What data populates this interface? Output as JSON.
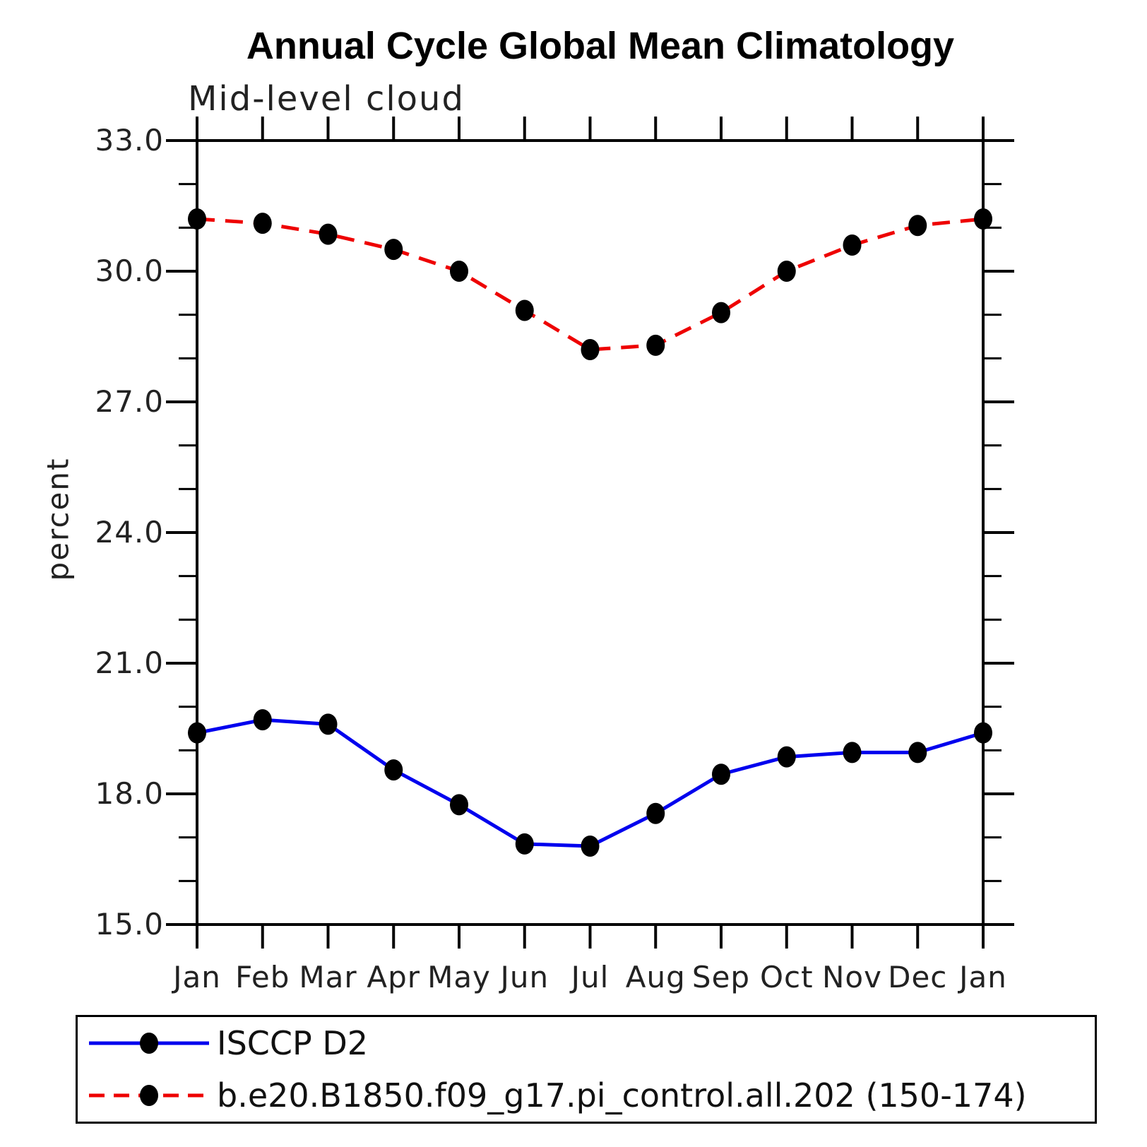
{
  "title": "Annual Cycle Global Mean Climatology",
  "subtitle": "Mid-level cloud",
  "ylabel": "percent",
  "chart_data": {
    "type": "line",
    "title": "Annual Cycle Global Mean Climatology",
    "subtitle": "Mid-level cloud",
    "xlabel": "",
    "ylabel": "percent",
    "categories": [
      "Jan",
      "Feb",
      "Mar",
      "Apr",
      "May",
      "Jun",
      "Jul",
      "Aug",
      "Sep",
      "Oct",
      "Nov",
      "Dec",
      "Jan"
    ],
    "ylim": [
      15.0,
      33.0
    ],
    "ytick_major": [
      15,
      18,
      21,
      24,
      27,
      30,
      33
    ],
    "ytick_labels": [
      "15.0",
      "18.0",
      "21.0",
      "24.0",
      "27.0",
      "30.0",
      "33.0"
    ],
    "ytick_minor_step": 1.0,
    "grid": false,
    "legend_position": "bottom",
    "marker": "filled-black-circle",
    "series": [
      {
        "name": "ISCCP D2",
        "color": "#0000ee",
        "style": "solid",
        "values": [
          19.4,
          19.7,
          19.6,
          18.55,
          17.75,
          16.85,
          16.8,
          17.55,
          18.45,
          18.85,
          18.95,
          18.95,
          19.4
        ]
      },
      {
        "name": "b.e20.B1850.f09_g17.pi_control.all.202 (150-174)",
        "color": "#ee0000",
        "style": "dashed",
        "values": [
          31.2,
          31.1,
          30.85,
          30.5,
          30.0,
          29.1,
          28.2,
          28.3,
          29.05,
          30.0,
          30.6,
          31.05,
          31.2
        ]
      }
    ]
  }
}
